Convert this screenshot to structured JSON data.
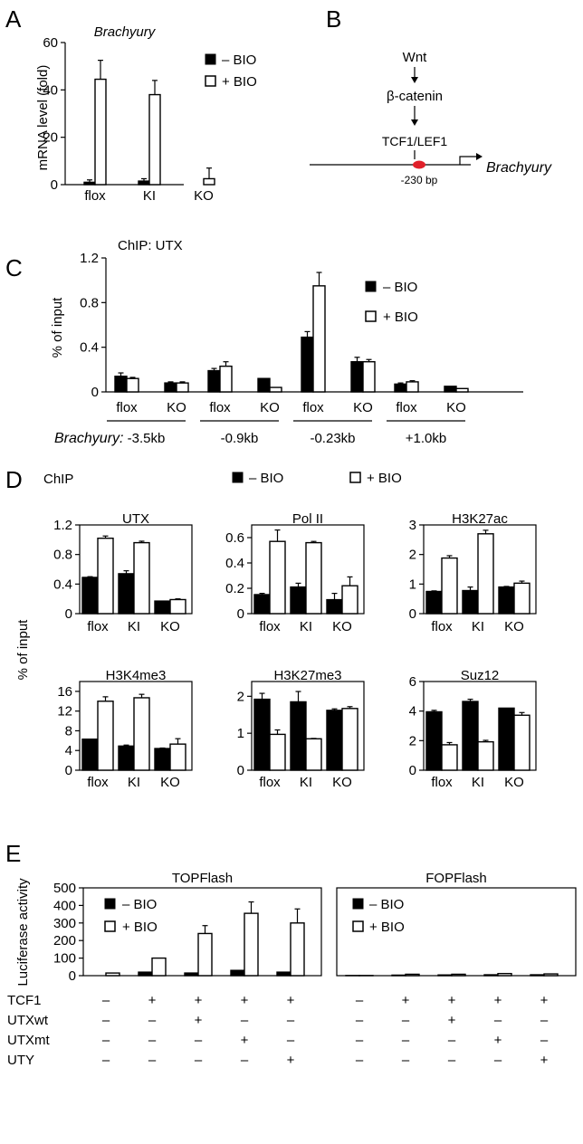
{
  "chart_data": [
    {
      "panel": "A",
      "type": "bar",
      "title": "Brachyury",
      "ylabel": "mRNA level (fold)",
      "ylim": [
        0,
        60
      ],
      "yticks": [
        0,
        20,
        40,
        60
      ],
      "categories": [
        "flox",
        "KI",
        "KO"
      ],
      "series": [
        {
          "name": "– BIO",
          "values": [
            1,
            1.5,
            0
          ],
          "errors": [
            1,
            1,
            0
          ]
        },
        {
          "name": "+ BIO",
          "values": [
            44.5,
            38,
            2.5
          ],
          "errors": [
            8,
            6,
            4.5
          ]
        }
      ],
      "legend": "top-right"
    },
    {
      "panel": "C",
      "type": "bar",
      "title": "ChIP: UTX",
      "ylabel": "% of input",
      "ylim": [
        0,
        1.2
      ],
      "yticks": [
        0,
        0.4,
        0.8,
        1.2
      ],
      "categories": [
        "flox",
        "KO",
        "flox",
        "KO",
        "flox",
        "KO",
        "flox",
        "KO"
      ],
      "group_labels": [
        "-3.5kb",
        "-0.9kb",
        "-0.23kb",
        "+1.0kb"
      ],
      "group_prefix": "Brachyury:",
      "series": [
        {
          "name": "– BIO",
          "values": [
            0.14,
            0.08,
            0.19,
            0.12,
            0.49,
            0.27,
            0.07,
            0.05
          ],
          "errors": [
            0.03,
            0.01,
            0.02,
            0,
            0.05,
            0.04,
            0.01,
            0
          ]
        },
        {
          "name": "+ BIO",
          "values": [
            0.12,
            0.08,
            0.23,
            0.04,
            0.95,
            0.27,
            0.09,
            0.03
          ],
          "errors": [
            0.01,
            0.01,
            0.04,
            0,
            0.12,
            0.02,
            0.01,
            0
          ]
        }
      ],
      "legend": "top-right"
    },
    {
      "panel": "D",
      "type": "bar",
      "title": "UTX",
      "ylabel": "% of input",
      "ylim": [
        0,
        1.2
      ],
      "yticks": [
        0,
        0.4,
        0.8,
        1.2
      ],
      "categories": [
        "flox",
        "KI",
        "KO"
      ],
      "series": [
        {
          "name": "– BIO",
          "values": [
            0.49,
            0.54,
            0.17
          ],
          "errors": [
            0.01,
            0.04,
            0
          ]
        },
        {
          "name": "+ BIO",
          "values": [
            1.02,
            0.96,
            0.19
          ],
          "errors": [
            0.03,
            0.02,
            0.01
          ]
        }
      ]
    },
    {
      "panel": "D",
      "type": "bar",
      "title": "Pol II",
      "ylim": [
        0,
        0.7
      ],
      "yticks": [
        0,
        0.2,
        0.4,
        0.6
      ],
      "categories": [
        "flox",
        "KI",
        "KO"
      ],
      "series": [
        {
          "name": "– BIO",
          "values": [
            0.15,
            0.21,
            0.11
          ],
          "errors": [
            0.01,
            0.03,
            0.05
          ]
        },
        {
          "name": "+ BIO",
          "values": [
            0.57,
            0.56,
            0.22
          ],
          "errors": [
            0.09,
            0.01,
            0.07
          ]
        }
      ]
    },
    {
      "panel": "D",
      "type": "bar",
      "title": "H3K27ac",
      "ylim": [
        0,
        3
      ],
      "yticks": [
        0,
        1,
        2,
        3
      ],
      "categories": [
        "flox",
        "KI",
        "KO"
      ],
      "series": [
        {
          "name": "– BIO",
          "values": [
            0.75,
            0.78,
            0.9
          ],
          "errors": [
            0.02,
            0.12,
            0.02
          ]
        },
        {
          "name": "+ BIO",
          "values": [
            1.88,
            2.7,
            1.03
          ],
          "errors": [
            0.08,
            0.12,
            0.07
          ]
        }
      ]
    },
    {
      "panel": "D",
      "type": "bar",
      "title": "H3K4me3",
      "ylabel": "% of input",
      "ylim": [
        0,
        18
      ],
      "yticks": [
        0,
        4,
        8,
        12,
        16
      ],
      "categories": [
        "flox",
        "KI",
        "KO"
      ],
      "series": [
        {
          "name": "– BIO",
          "values": [
            6.3,
            4.9,
            4.4
          ],
          "errors": [
            0,
            0.2,
            0.1
          ]
        },
        {
          "name": "+ BIO",
          "values": [
            14.0,
            14.7,
            5.3
          ],
          "errors": [
            0.9,
            0.7,
            1.1
          ]
        }
      ]
    },
    {
      "panel": "D",
      "type": "bar",
      "title": "H3K27me3",
      "ylim": [
        0,
        2.4
      ],
      "yticks": [
        0,
        1,
        2
      ],
      "categories": [
        "flox",
        "KI",
        "KO"
      ],
      "series": [
        {
          "name": "– BIO",
          "values": [
            1.92,
            1.85,
            1.62
          ],
          "errors": [
            0.16,
            0.28,
            0.04
          ]
        },
        {
          "name": "+ BIO",
          "values": [
            0.97,
            0.85,
            1.67
          ],
          "errors": [
            0.12,
            0.01,
            0.05
          ]
        }
      ]
    },
    {
      "panel": "D",
      "type": "bar",
      "title": "Suz12",
      "ylim": [
        0,
        6
      ],
      "yticks": [
        0,
        2,
        4,
        6
      ],
      "categories": [
        "flox",
        "KI",
        "KO"
      ],
      "series": [
        {
          "name": "– BIO",
          "values": [
            3.95,
            4.65,
            4.2
          ],
          "errors": [
            0.1,
            0.15,
            0
          ]
        },
        {
          "name": "+ BIO",
          "values": [
            1.72,
            1.92,
            3.72
          ],
          "errors": [
            0.15,
            0.1,
            0.18
          ]
        }
      ]
    },
    {
      "panel": "E",
      "type": "bar",
      "title": "TOPFlash",
      "ylabel": "Luciferase activity",
      "ylim": [
        0,
        500
      ],
      "yticks": [
        0,
        100,
        200,
        300,
        400,
        500
      ],
      "categories": [
        "1",
        "2",
        "3",
        "4",
        "5"
      ],
      "series": [
        {
          "name": "– BIO",
          "values": [
            0,
            20,
            15,
            30,
            20
          ],
          "errors": [
            0,
            0,
            0,
            0,
            0
          ]
        },
        {
          "name": "+ BIO",
          "values": [
            15,
            100,
            240,
            355,
            300
          ],
          "errors": [
            0,
            0,
            45,
            65,
            80
          ]
        }
      ],
      "legend": "top-left"
    },
    {
      "panel": "E",
      "type": "bar",
      "title": "FOPFlash",
      "ylim": [
        0,
        500
      ],
      "categories": [
        "1",
        "2",
        "3",
        "4",
        "5"
      ],
      "series": [
        {
          "name": "– BIO",
          "values": [
            1,
            3,
            4,
            5,
            5
          ],
          "errors": [
            0,
            0,
            0,
            0,
            0
          ]
        },
        {
          "name": "+ BIO",
          "values": [
            1,
            8,
            8,
            12,
            10
          ],
          "errors": [
            0,
            0,
            0,
            0,
            0
          ]
        }
      ],
      "legend": "top-left"
    }
  ],
  "panel_letters": {
    "a": "A",
    "b": "B",
    "c": "C",
    "d": "D",
    "e": "E"
  },
  "legend": {
    "minus": "– BIO",
    "plus": "+ BIO"
  },
  "panel_d": {
    "chip_label": "ChIP",
    "ylabel": "% of input"
  },
  "diagram": {
    "wnt": "Wnt",
    "beta_catenin": "β-catenin",
    "tcf": "TCF1/LEF1",
    "gene": "Brachyury",
    "site": "-230 bp"
  },
  "treatment_table": {
    "rows": [
      {
        "label": "TCF1",
        "marks": [
          "–",
          "+",
          "+",
          "+",
          "+"
        ]
      },
      {
        "label": "UTXwt",
        "marks": [
          "–",
          "–",
          "+",
          "–",
          "–"
        ]
      },
      {
        "label": "UTXmt",
        "marks": [
          "–",
          "–",
          "–",
          "+",
          "–"
        ]
      },
      {
        "label": "UTY",
        "marks": [
          "–",
          "–",
          "–",
          "–",
          "+"
        ]
      }
    ]
  },
  "colors": {
    "minus_bio": "#000000",
    "plus_bio": "#ffffff",
    "promoter_site": "#e0202a"
  }
}
